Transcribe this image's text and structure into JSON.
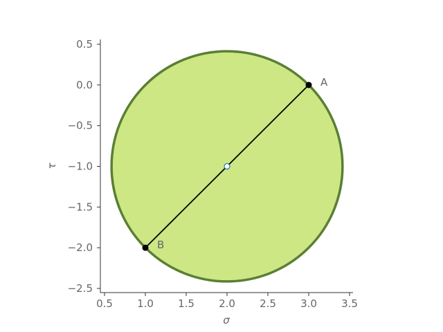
{
  "chart_data": {
    "type": "scatter",
    "xlabel": "σ",
    "ylabel": "τ",
    "xlim": [
      0.5,
      3.5
    ],
    "ylim": [
      -2.5,
      0.5
    ],
    "x_ticks": [
      0.5,
      1.0,
      1.5,
      2.0,
      2.5,
      3.0,
      3.5
    ],
    "x_tick_labels": [
      "0.5",
      "1.0",
      "1.5",
      "2.0",
      "2.5",
      "3.0",
      "3.5"
    ],
    "y_ticks": [
      0.5,
      0.0,
      -0.5,
      -1.0,
      -1.5,
      -2.0,
      -2.5
    ],
    "y_tick_labels": [
      "0.5",
      "0.0",
      "−0.5",
      "−1.0",
      "−1.5",
      "−2.0",
      "−2.5"
    ],
    "grid": false,
    "circle": {
      "center": [
        2.0,
        -1.0
      ],
      "radius": 1.414,
      "fill": "#cde785",
      "edge": "#5a7f34"
    },
    "diameter": {
      "from": [
        3.0,
        0.0
      ],
      "to": [
        1.0,
        -2.0
      ],
      "color": "#000000"
    },
    "points": [
      {
        "label": "A",
        "x": 3.0,
        "y": 0.0,
        "color": "#000000"
      },
      {
        "label": "B",
        "x": 1.0,
        "y": -2.0,
        "color": "#000000"
      }
    ],
    "center_marker": {
      "x": 2.0,
      "y": -1.0,
      "fill": "#ffffff",
      "edge": "#1f77b4"
    },
    "text_color": "#666666",
    "axis_color": "#333333"
  }
}
